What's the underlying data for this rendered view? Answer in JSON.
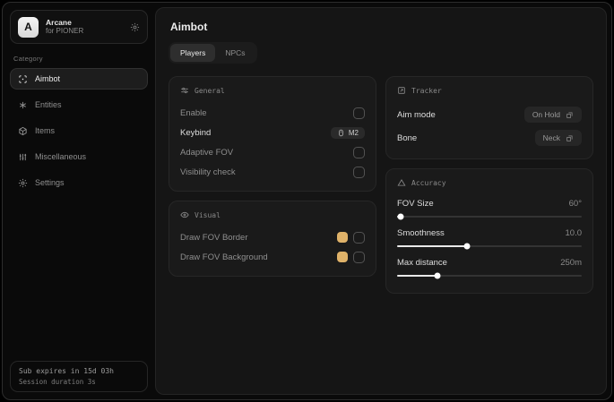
{
  "sidebar": {
    "brand": {
      "initial": "A",
      "name": "Arcane",
      "subtitle": "for PIONER"
    },
    "category_label": "Category",
    "items": [
      {
        "label": "Aimbot"
      },
      {
        "label": "Entities"
      },
      {
        "label": "Items"
      },
      {
        "label": "Miscellaneous"
      },
      {
        "label": "Settings"
      }
    ],
    "footer": {
      "line1": "Sub expires in 15d 03h",
      "line2": "Session duration 3s"
    }
  },
  "main": {
    "title": "Aimbot",
    "tabs": [
      {
        "label": "Players"
      },
      {
        "label": "NPCs"
      }
    ],
    "cards": {
      "general": {
        "title": "General",
        "rows": {
          "enable": {
            "label": "Enable"
          },
          "keybind": {
            "label": "Keybind",
            "value": "M2"
          },
          "adaptive_fov": {
            "label": "Adaptive FOV"
          },
          "visibility_check": {
            "label": "Visibility check"
          }
        }
      },
      "visual": {
        "title": "Visual",
        "rows": {
          "fov_border": {
            "label": "Draw FOV Border",
            "color": "#dfb269"
          },
          "fov_background": {
            "label": "Draw FOV Background",
            "color": "#dfb269"
          }
        }
      },
      "tracker": {
        "title": "Tracker",
        "rows": {
          "aim_mode": {
            "label": "Aim mode",
            "value": "On Hold"
          },
          "bone": {
            "label": "Bone",
            "value": "Neck"
          }
        }
      },
      "accuracy": {
        "title": "Accuracy",
        "sliders": [
          {
            "label": "FOV Size",
            "value": "60°",
            "percent": 2
          },
          {
            "label": "Smoothness",
            "value": "10.0",
            "percent": 38
          },
          {
            "label": "Max distance",
            "value": "250m",
            "percent": 22
          }
        ]
      }
    }
  },
  "colors": {
    "accent_swatch": "#dfb269"
  }
}
